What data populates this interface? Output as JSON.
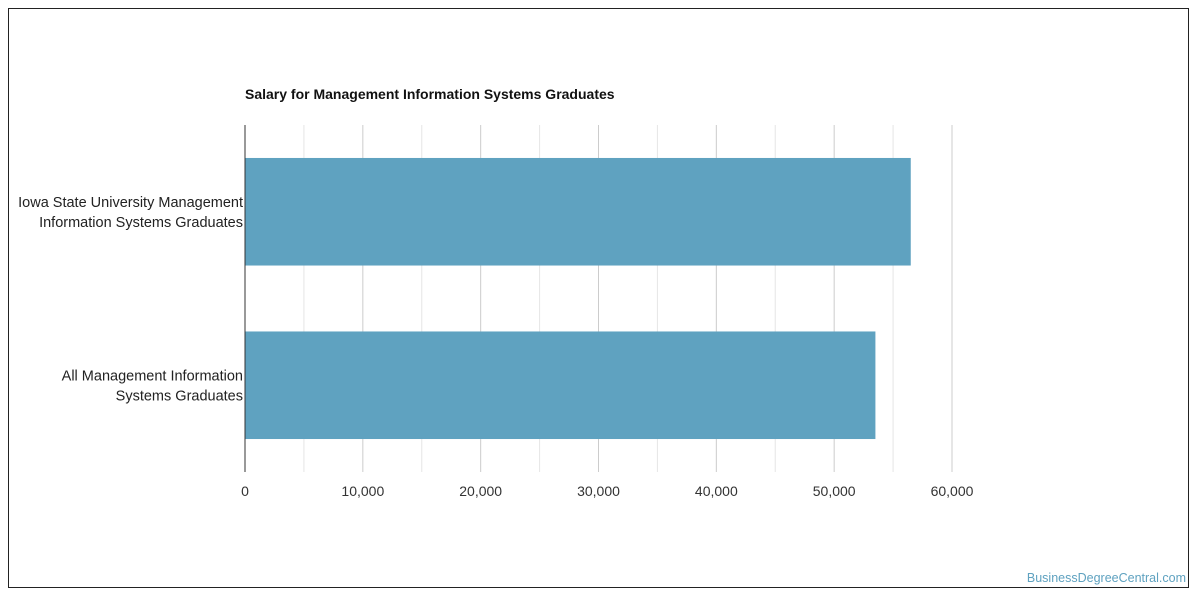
{
  "chart_data": {
    "type": "bar",
    "orientation": "horizontal",
    "title": "Salary for Management Information Systems Graduates",
    "categories": [
      [
        "Iowa State University Management",
        "Information Systems Graduates"
      ],
      [
        "All Management Information",
        "Systems Graduates"
      ]
    ],
    "values": [
      56500,
      53500
    ],
    "xlim": [
      0,
      60000
    ],
    "x_ticks": [
      0,
      10000,
      20000,
      30000,
      40000,
      50000,
      60000
    ],
    "x_tick_labels": [
      "0",
      "10,000",
      "20,000",
      "30,000",
      "40,000",
      "50,000",
      "60,000"
    ],
    "grid": true,
    "bar_color": "#5fa2c0",
    "xlabel": "",
    "ylabel": ""
  },
  "watermark": "BusinessDegreeCentral.com"
}
